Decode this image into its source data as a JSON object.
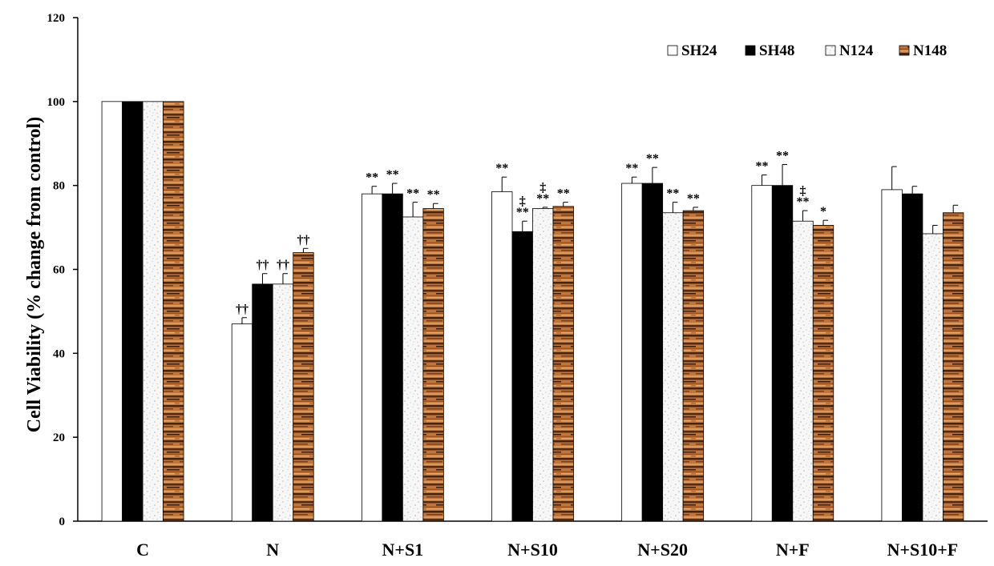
{
  "chart_data": {
    "type": "bar",
    "title": "",
    "xlabel": "",
    "ylabel": "Cell Viability (% change from control)",
    "ylim": [
      0,
      120
    ],
    "yticks": [
      0,
      20,
      40,
      60,
      80,
      100,
      120
    ],
    "grid": false,
    "legend_position": "top-right",
    "categories": [
      "C",
      "N",
      "N+S1",
      "N+S10",
      "N+S20",
      "N+F",
      "N+S10+F"
    ],
    "series": [
      {
        "name": "SH24",
        "style": "white",
        "values": [
          100,
          47,
          78,
          78.5,
          80.5,
          80,
          79
        ],
        "errors": [
          0,
          1.5,
          1.8,
          3.5,
          1.5,
          2.5,
          5.5
        ],
        "annotations": [
          "",
          "††",
          "**",
          "**",
          "**",
          "**",
          ""
        ]
      },
      {
        "name": "SH48",
        "style": "black",
        "values": [
          100,
          56.5,
          78,
          69,
          80.5,
          80,
          78
        ],
        "errors": [
          0,
          2.5,
          2.5,
          2.5,
          3.8,
          5,
          1.8
        ],
        "annotations": [
          "",
          "††",
          "**",
          "‡\n**",
          "**",
          "**",
          ""
        ]
      },
      {
        "name": "N124",
        "style": "speckled",
        "values": [
          100,
          56.5,
          72.5,
          74.5,
          73.5,
          71.5,
          68.5
        ],
        "errors": [
          0,
          2.5,
          3.5,
          0.3,
          2.5,
          2.5,
          2
        ],
        "annotations": [
          "",
          "††",
          "**",
          "‡\n**",
          "**",
          "‡\n**",
          ""
        ]
      },
      {
        "name": "N148",
        "style": "wood",
        "values": [
          100,
          64,
          74.5,
          75,
          74,
          70.5,
          73.5
        ],
        "errors": [
          0,
          1,
          1.2,
          1,
          0.8,
          1.2,
          1.8
        ],
        "annotations": [
          "",
          "††",
          "**",
          "**",
          "**",
          "*",
          ""
        ]
      }
    ],
    "colors": {
      "axis": "#000000",
      "white_fill": "#ffffff",
      "black_fill": "#000000",
      "speckle_base": "#f7f7f7",
      "speckle_dot": "#b8b8b8",
      "wood_light": "#c0753a",
      "wood_dark": "#4a230d"
    }
  }
}
